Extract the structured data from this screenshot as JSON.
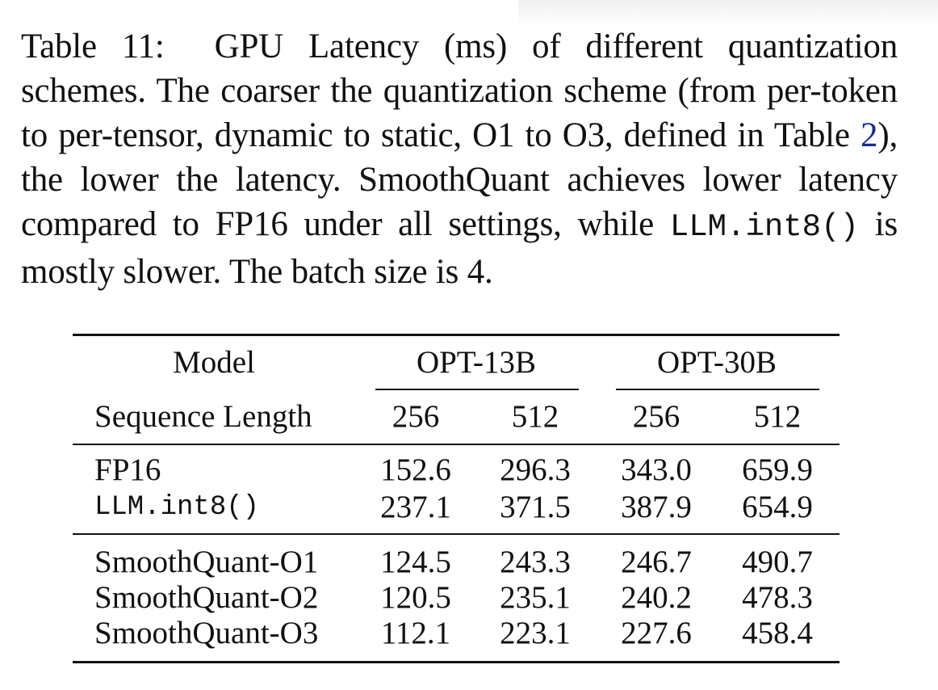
{
  "caption": {
    "label": "Table 11:",
    "text_part1": "GPU Latency (ms) of different quantization schemes. The coarser the quantization scheme (from per-token to per-tensor, dynamic to static, O1 to O3, defined in Table",
    "ref": "2",
    "text_part2": "), the lower the latency. SmoothQuant achieves lower latency compared to FP16 under all settings, while",
    "code": "LLM.int8()",
    "text_part3": "is mostly slower. The batch size is 4."
  },
  "table": {
    "header": {
      "model_label": "Model",
      "seq_label": "Sequence Length",
      "groups": [
        "OPT-13B",
        "OPT-30B"
      ],
      "seq_lengths": [
        "256",
        "512",
        "256",
        "512"
      ]
    },
    "baseline_rows": [
      {
        "method": "FP16",
        "values": [
          "152.6",
          "296.3",
          "343.0",
          "659.9"
        ]
      },
      {
        "method": "LLM.int8()",
        "values": [
          "237.1",
          "371.5",
          "387.9",
          "654.9"
        ]
      }
    ],
    "smoothquant_rows": [
      {
        "method": "SmoothQuant-O1",
        "values": [
          "124.5",
          "243.3",
          "246.7",
          "490.7"
        ]
      },
      {
        "method": "SmoothQuant-O2",
        "values": [
          "120.5",
          "235.1",
          "240.2",
          "478.3"
        ]
      },
      {
        "method": "SmoothQuant-O3",
        "values": [
          "112.1",
          "223.1",
          "227.6",
          "458.4"
        ]
      }
    ]
  }
}
